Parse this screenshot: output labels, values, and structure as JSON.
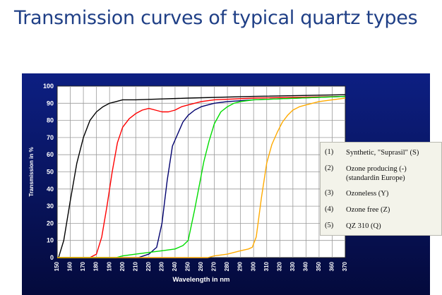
{
  "header": {
    "title": "Transmission curves of typical quartz types"
  },
  "legend": {
    "items": [
      {
        "number": "(1)",
        "lines": [
          "Synthetic, \"Suprasil\" (S)"
        ]
      },
      {
        "number": "(2)",
        "lines": [
          "Ozone producing (-)",
          "(standardin Europe)"
        ]
      },
      {
        "number": "(3)",
        "lines": [
          "Ozoneless (Y)"
        ]
      },
      {
        "number": "(4)",
        "lines": [
          "Ozone free (Z)"
        ]
      },
      {
        "number": "(5)",
        "lines": [
          "QZ 310 (Q)"
        ]
      }
    ]
  },
  "chart_data": {
    "type": "line",
    "title": "",
    "xlabel": "Wavelength in nm",
    "ylabel": "Transmission in %",
    "xlim": [
      150,
      370
    ],
    "ylim": [
      0,
      100
    ],
    "x_ticks": [
      150,
      160,
      170,
      180,
      190,
      200,
      210,
      220,
      230,
      240,
      250,
      260,
      270,
      280,
      290,
      300,
      310,
      320,
      330,
      340,
      350,
      360,
      370
    ],
    "y_ticks": [
      0,
      10,
      20,
      30,
      40,
      50,
      60,
      70,
      80,
      90,
      100
    ],
    "grid": true,
    "legend_position": "right",
    "background": "#0a1a6e",
    "series": [
      {
        "color": "#000000",
        "x": [
          151,
          155,
          160,
          165,
          170,
          175,
          180,
          185,
          190,
          195,
          200,
          210,
          230,
          250,
          300,
          370
        ],
        "y": [
          0,
          10,
          33,
          55,
          70,
          80,
          85,
          88,
          90,
          91,
          92,
          92,
          92.5,
          93,
          94,
          95
        ]
      },
      {
        "color": "#ff0000",
        "x": [
          150,
          175,
          180,
          184,
          188,
          192,
          196,
          200,
          205,
          210,
          215,
          220,
          225,
          230,
          235,
          240,
          245,
          250,
          255,
          260,
          270,
          300,
          370
        ],
        "y": [
          0,
          0,
          2,
          12,
          30,
          50,
          67,
          76,
          81,
          84,
          86,
          87,
          86,
          85,
          85,
          86,
          88,
          89,
          90,
          91,
          92,
          93,
          94
        ]
      },
      {
        "color": "#00006e",
        "x": [
          150,
          212,
          220,
          226,
          230,
          234,
          238,
          242,
          246,
          250,
          255,
          260,
          265,
          270,
          275,
          280,
          300,
          370
        ],
        "y": [
          0,
          0,
          2,
          6,
          20,
          45,
          65,
          72,
          79,
          83,
          86,
          88,
          89,
          90,
          90.5,
          91,
          92,
          94
        ]
      },
      {
        "color": "#00dd00",
        "x": [
          150,
          195,
          200,
          210,
          220,
          230,
          240,
          246,
          250,
          255,
          258,
          262,
          266,
          270,
          275,
          280,
          285,
          290,
          300,
          370
        ],
        "y": [
          0,
          0,
          1,
          2,
          3,
          4,
          5,
          7,
          10,
          28,
          40,
          56,
          68,
          78,
          85,
          88,
          90,
          91,
          92,
          94
        ]
      },
      {
        "color": "#ffaa00",
        "x": [
          150,
          265,
          270,
          280,
          290,
          296,
          299,
          302,
          306,
          310,
          314,
          318,
          322,
          326,
          330,
          335,
          340,
          345,
          350,
          360,
          370
        ],
        "y": [
          0,
          0,
          1,
          2,
          4,
          5,
          6,
          12,
          35,
          55,
          66,
          73,
          79,
          83,
          86,
          88,
          89,
          90,
          91,
          92,
          93
        ]
      }
    ]
  }
}
